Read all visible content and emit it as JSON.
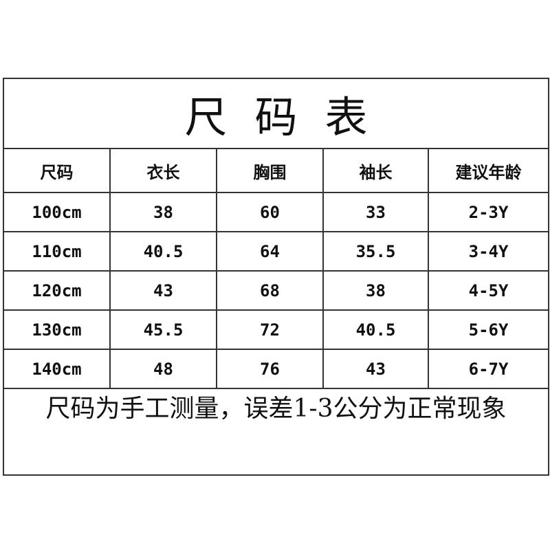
{
  "title": "尺码表",
  "headers": [
    "尺码",
    "衣长",
    "胸围",
    "袖长",
    "建议年龄"
  ],
  "rows": [
    [
      "100cm",
      "38",
      "60",
      "33",
      "2-3Y"
    ],
    [
      "110cm",
      "40.5",
      "64",
      "35.5",
      "3-4Y"
    ],
    [
      "120cm",
      "43",
      "68",
      "38",
      "4-5Y"
    ],
    [
      "130cm",
      "45.5",
      "72",
      "40.5",
      "5-6Y"
    ],
    [
      "140cm",
      "48",
      "76",
      "43",
      "6-7Y"
    ]
  ],
  "note": "尺码为手工测量，误差1-3公分为正常现象"
}
